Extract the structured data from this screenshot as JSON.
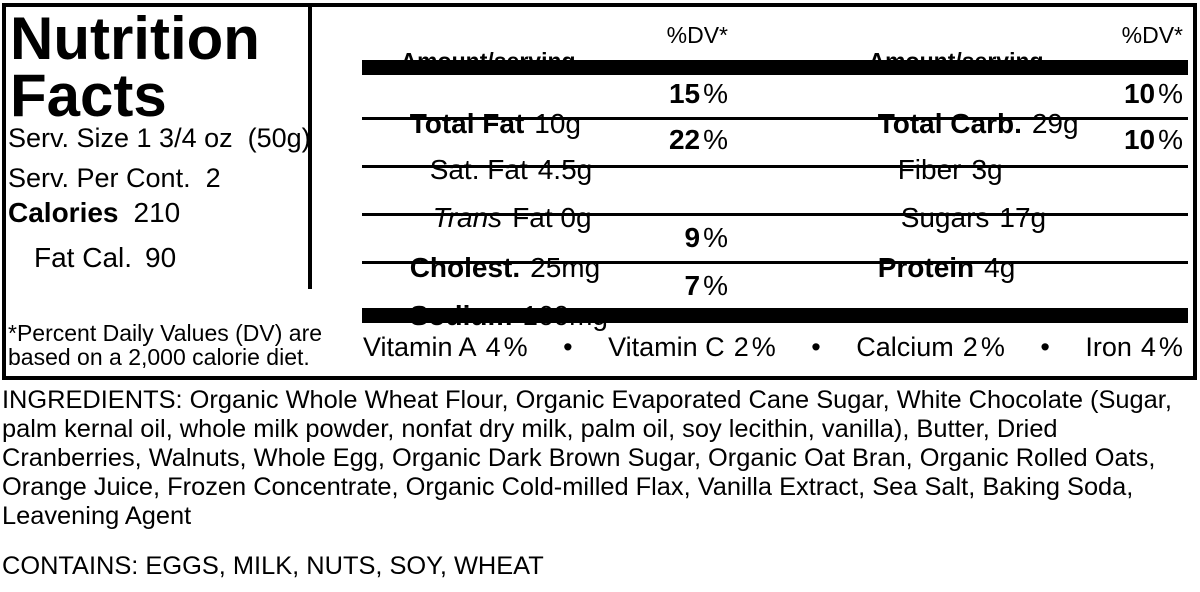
{
  "strings": {
    "percent": "%",
    "bullet": "•"
  },
  "panel": {
    "title_line1": "Nutrition",
    "title_line2": "Facts",
    "serving_size": "Serv. Size 1 3/4 oz  (50g)",
    "servings_per_container": "Serv. Per Cont.  2",
    "calories_label": "Calories",
    "calories_value": "210",
    "fat_calories_label": "Fat Cal.",
    "fat_calories_value": "90",
    "footnote_line1": "*Percent Daily Values (DV) are",
    "footnote_line2": "based on a 2,000 calorie diet."
  },
  "table": {
    "amount_header": "Amount/serving",
    "dv_header": "%DV*",
    "middle_rows": [
      {
        "name": "Total Fat",
        "amount": "10g",
        "dv": "15",
        "pct": "%"
      },
      {
        "name": "Sat. Fat",
        "amount": "4.5g",
        "dv": "22",
        "pct": "%"
      },
      {
        "name": "Trans",
        "amount": "Fat 0g",
        "dv": "",
        "pct": ""
      },
      {
        "name": "Cholest.",
        "amount": "25mg",
        "dv": "9",
        "pct": "%"
      },
      {
        "name": "Sodium",
        "amount": "160mg",
        "dv": "7",
        "pct": "%"
      }
    ],
    "right_rows": [
      {
        "name": "Total Carb.",
        "amount": "29g",
        "dv": "10",
        "pct": "%"
      },
      {
        "name": "Fiber",
        "amount": "3g",
        "dv": "10",
        "pct": "%"
      },
      {
        "name": "Sugars",
        "amount": "17g",
        "dv": "",
        "pct": ""
      },
      {
        "name": "Protein",
        "amount": "4g",
        "dv": "",
        "pct": ""
      }
    ],
    "vitamins": [
      {
        "label": "Vitamin A",
        "value": "4"
      },
      {
        "label": "Vitamin C",
        "value": "2"
      },
      {
        "label": "Calcium",
        "value": "2"
      },
      {
        "label": "Iron",
        "value": "4"
      }
    ]
  },
  "ingredients": "INGREDIENTS: Organic Whole Wheat Flour, Organic Evaporated Cane Sugar, White Chocolate (Sugar, palm kernal oil, whole milk powder, nonfat dry milk, palm oil, soy lecithin, vanilla), Butter, Dried Cranberries, Walnuts, Whole Egg, Organic Dark Brown Sugar, Organic Oat Bran, Organic Rolled Oats, Orange Juice, Frozen Concentrate, Organic Cold-milled Flax, Vanilla Extract, Sea Salt, Baking Soda, Leavening Agent",
  "contains": "CONTAINS: EGGS, MILK, NUTS, SOY, WHEAT"
}
